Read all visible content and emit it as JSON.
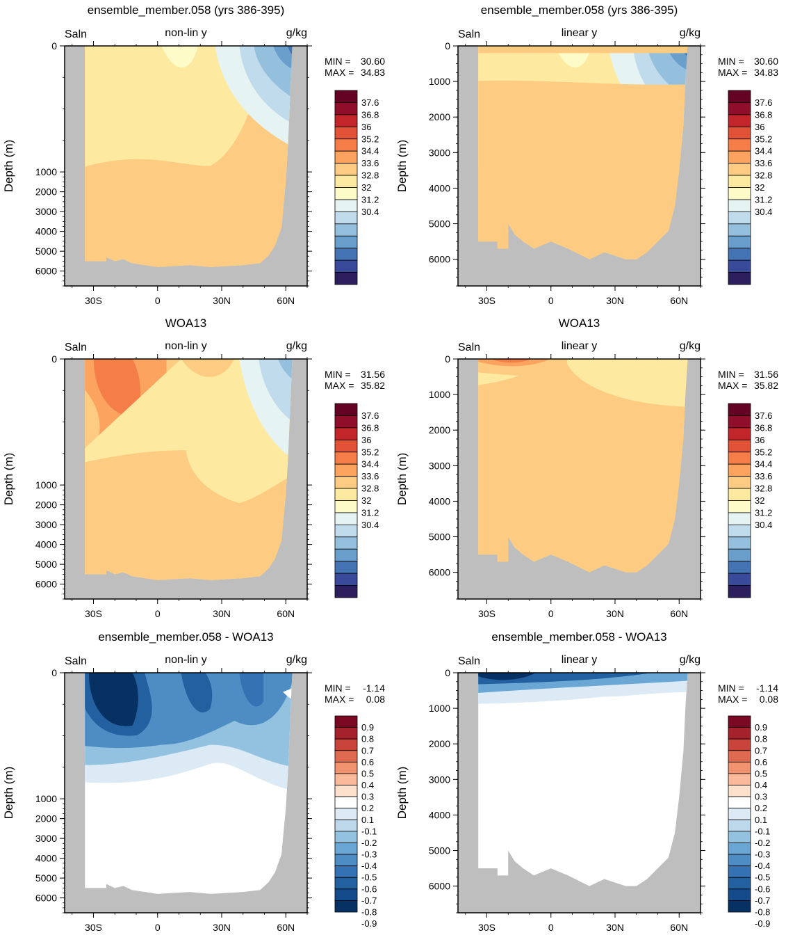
{
  "chart_data": [
    {
      "type": "heatmap",
      "panel": 1,
      "title": "ensemble_member.058 (yrs 386-395)",
      "variable": "Saln",
      "scaling": "non-lin y",
      "units": "g/kg",
      "ylabel": "Depth (m)",
      "yticks": [
        "0",
        "1000",
        "2000",
        "3000",
        "4000",
        "5000",
        "6000"
      ],
      "xticks": [
        "30S",
        "0",
        "30N",
        "60N"
      ],
      "min_label": "MIN =",
      "min_value": "30.60",
      "max_label": "MAX =",
      "max_value": "34.83",
      "colorbar_labels": [
        "37.6",
        "36.8",
        "36",
        "35.2",
        "34.4",
        "33.6",
        "32.8",
        "32",
        "31.2",
        "30.4"
      ]
    },
    {
      "type": "heatmap",
      "panel": 2,
      "title": "ensemble_member.058 (yrs 386-395)",
      "variable": "Saln",
      "scaling": "linear y",
      "units": "g/kg",
      "ylabel": "Depth (m)",
      "yticks": [
        "0",
        "1000",
        "2000",
        "3000",
        "4000",
        "5000",
        "6000"
      ],
      "xticks": [
        "30S",
        "0",
        "30N",
        "60N"
      ],
      "min_label": "MIN =",
      "min_value": "30.60",
      "max_label": "MAX =",
      "max_value": "34.83",
      "colorbar_labels": [
        "37.6",
        "36.8",
        "36",
        "35.2",
        "34.4",
        "33.6",
        "32.8",
        "32",
        "31.2",
        "30.4"
      ]
    },
    {
      "type": "heatmap",
      "panel": 3,
      "title": "WOA13",
      "variable": "Saln",
      "scaling": "non-lin y",
      "units": "g/kg",
      "ylabel": "Depth (m)",
      "yticks": [
        "0",
        "1000",
        "2000",
        "3000",
        "4000",
        "5000",
        "6000"
      ],
      "xticks": [
        "30S",
        "0",
        "30N",
        "60N"
      ],
      "min_label": "MIN =",
      "min_value": "31.56",
      "max_label": "MAX =",
      "max_value": "35.82",
      "colorbar_labels": [
        "37.6",
        "36.8",
        "36",
        "35.2",
        "34.4",
        "33.6",
        "32.8",
        "32",
        "31.2",
        "30.4"
      ]
    },
    {
      "type": "heatmap",
      "panel": 4,
      "title": "WOA13",
      "variable": "Saln",
      "scaling": "linear y",
      "units": "g/kg",
      "ylabel": "Depth (m)",
      "yticks": [
        "0",
        "1000",
        "2000",
        "3000",
        "4000",
        "5000",
        "6000"
      ],
      "xticks": [
        "30S",
        "0",
        "30N",
        "60N"
      ],
      "min_label": "MIN =",
      "min_value": "31.56",
      "max_label": "MAX =",
      "max_value": "35.82",
      "colorbar_labels": [
        "37.6",
        "36.8",
        "36",
        "35.2",
        "34.4",
        "33.6",
        "32.8",
        "32",
        "31.2",
        "30.4"
      ]
    },
    {
      "type": "heatmap",
      "panel": 5,
      "title": "ensemble_member.058 - WOA13",
      "variable": "Saln",
      "scaling": "non-lin y",
      "units": "g/kg",
      "ylabel": "Depth (m)",
      "yticks": [
        "0",
        "1000",
        "2000",
        "3000",
        "4000",
        "5000",
        "6000"
      ],
      "xticks": [
        "30S",
        "0",
        "30N",
        "60N"
      ],
      "min_label": "MIN =",
      "min_value": "-1.14",
      "max_label": "MAX =",
      "max_value": "0.08",
      "colorbar_labels": [
        "0.9",
        "0.8",
        "0.7",
        "0.6",
        "0.5",
        "0.4",
        "0.3",
        "0.2",
        "0.1",
        "-0.1",
        "-0.2",
        "-0.3",
        "-0.4",
        "-0.5",
        "-0.6",
        "-0.7",
        "-0.8",
        "-0.9"
      ]
    },
    {
      "type": "heatmap",
      "panel": 6,
      "title": "ensemble_member.058 - WOA13",
      "variable": "Saln",
      "scaling": "linear y",
      "units": "g/kg",
      "ylabel": "Depth (m)",
      "yticks": [
        "0",
        "1000",
        "2000",
        "3000",
        "4000",
        "5000",
        "6000"
      ],
      "xticks": [
        "30S",
        "0",
        "30N",
        "60N"
      ],
      "min_label": "MIN =",
      "min_value": "-1.14",
      "max_label": "MAX =",
      "max_value": "0.08",
      "colorbar_labels": [
        "0.9",
        "0.8",
        "0.7",
        "0.6",
        "0.5",
        "0.4",
        "0.3",
        "0.2",
        "0.1",
        "-0.1",
        "-0.2",
        "-0.3",
        "-0.4",
        "-0.5",
        "-0.6",
        "-0.7",
        "-0.8",
        "-0.9"
      ]
    }
  ],
  "colors": {
    "land": "#bebebe",
    "salinity_scale": [
      "#2d1e5e",
      "#3a4a9a",
      "#4474b3",
      "#6a9fcc",
      "#94c0de",
      "#c0dcec",
      "#e6f3f3",
      "#fdfbc7",
      "#fee9a1",
      "#fdcc82",
      "#fca45f",
      "#f47d48",
      "#e25237",
      "#c2252a",
      "#8f0f2a",
      "#650324"
    ],
    "diff_scale": [
      "#083163",
      "#134b8a",
      "#22609f",
      "#3572b3",
      "#4d8dc4",
      "#6ba7d4",
      "#93c2e0",
      "#bcd8ea",
      "#dbeaf4",
      "#ffffff",
      "#fde0cc",
      "#f9b99a",
      "#f0936e",
      "#e06a50",
      "#c9443a",
      "#a5212b",
      "#7a0822"
    ]
  }
}
